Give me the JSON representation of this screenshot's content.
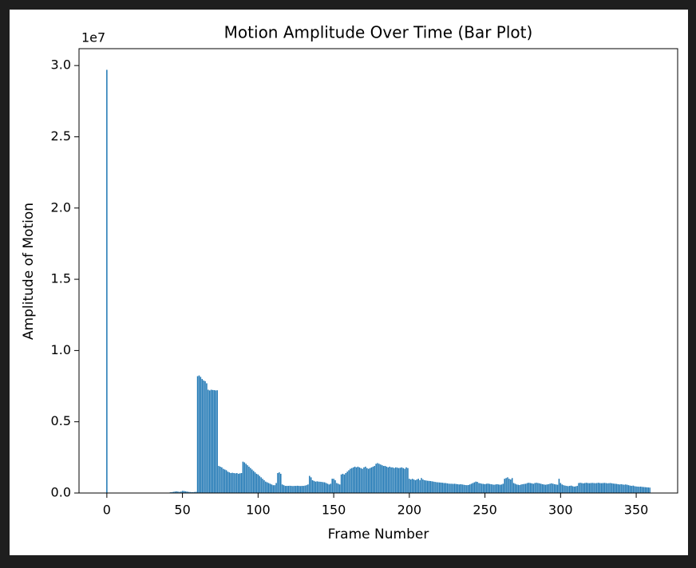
{
  "chart_data": {
    "type": "bar",
    "title": "Motion Amplitude Over Time (Bar Plot)",
    "x_label": "Frame Number",
    "y_label": "Amplitude of Motion",
    "y_offset_label": "1e7",
    "color": "#1f77b4",
    "xlim": [
      -18.4,
      377.4
    ],
    "ylim": [
      0,
      31185000
    ],
    "xticks": [
      0,
      50,
      100,
      150,
      200,
      250,
      300,
      350
    ],
    "yticks": [
      {
        "value": 0,
        "label": "0.0"
      },
      {
        "value": 5000000,
        "label": "0.5"
      },
      {
        "value": 10000000,
        "label": "1.0"
      },
      {
        "value": 15000000,
        "label": "1.5"
      },
      {
        "value": 20000000,
        "label": "2.0"
      },
      {
        "value": 25000000,
        "label": "2.5"
      },
      {
        "value": 30000000,
        "label": "3.0"
      }
    ],
    "x": [
      0,
      1,
      2,
      3,
      4,
      5,
      6,
      7,
      8,
      9,
      10,
      11,
      12,
      13,
      14,
      15,
      16,
      17,
      18,
      19,
      20,
      21,
      22,
      23,
      24,
      25,
      26,
      27,
      28,
      29,
      30,
      31,
      32,
      33,
      34,
      35,
      36,
      37,
      38,
      39,
      40,
      41,
      42,
      43,
      44,
      45,
      46,
      47,
      48,
      49,
      50,
      51,
      52,
      53,
      54,
      55,
      56,
      57,
      58,
      59,
      60,
      61,
      62,
      63,
      64,
      65,
      66,
      67,
      68,
      69,
      70,
      71,
      72,
      73,
      74,
      75,
      76,
      77,
      78,
      79,
      80,
      81,
      82,
      83,
      84,
      85,
      86,
      87,
      88,
      89,
      90,
      91,
      92,
      93,
      94,
      95,
      96,
      97,
      98,
      99,
      100,
      101,
      102,
      103,
      104,
      105,
      106,
      107,
      108,
      109,
      110,
      111,
      112,
      113,
      114,
      115,
      116,
      117,
      118,
      119,
      120,
      121,
      122,
      123,
      124,
      125,
      126,
      127,
      128,
      129,
      130,
      131,
      132,
      133,
      134,
      135,
      136,
      137,
      138,
      139,
      140,
      141,
      142,
      143,
      144,
      145,
      146,
      147,
      148,
      149,
      150,
      151,
      152,
      153,
      154,
      155,
      156,
      157,
      158,
      159,
      160,
      161,
      162,
      163,
      164,
      165,
      166,
      167,
      168,
      169,
      170,
      171,
      172,
      173,
      174,
      175,
      176,
      177,
      178,
      179,
      180,
      181,
      182,
      183,
      184,
      185,
      186,
      187,
      188,
      189,
      190,
      191,
      192,
      193,
      194,
      195,
      196,
      197,
      198,
      199,
      200,
      201,
      202,
      203,
      204,
      205,
      206,
      207,
      208,
      209,
      210,
      211,
      212,
      213,
      214,
      215,
      216,
      217,
      218,
      219,
      220,
      221,
      222,
      223,
      224,
      225,
      226,
      227,
      228,
      229,
      230,
      231,
      232,
      233,
      234,
      235,
      236,
      237,
      238,
      239,
      240,
      241,
      242,
      243,
      244,
      245,
      246,
      247,
      248,
      249,
      250,
      251,
      252,
      253,
      254,
      255,
      256,
      257,
      258,
      259,
      260,
      261,
      262,
      263,
      264,
      265,
      266,
      267,
      268,
      269,
      270,
      271,
      272,
      273,
      274,
      275,
      276,
      277,
      278,
      279,
      280,
      281,
      282,
      283,
      284,
      285,
      286,
      287,
      288,
      289,
      290,
      291,
      292,
      293,
      294,
      295,
      296,
      297,
      298,
      299,
      300,
      301,
      302,
      303,
      304,
      305,
      306,
      307,
      308,
      309,
      310,
      311,
      312,
      313,
      314,
      315,
      316,
      317,
      318,
      319,
      320,
      321,
      322,
      323,
      324,
      325,
      326,
      327,
      328,
      329,
      330,
      331,
      332,
      333,
      334,
      335,
      336,
      337,
      338,
      339,
      340,
      341,
      342,
      343,
      344,
      345,
      346,
      347,
      348,
      349,
      350,
      351,
      352,
      353,
      354,
      355,
      356,
      357,
      358,
      359
    ],
    "values": [
      29700000,
      0,
      0,
      0,
      0,
      0,
      0,
      0,
      0,
      0,
      0,
      0,
      0,
      0,
      0,
      0,
      0,
      0,
      0,
      0,
      0,
      0,
      0,
      0,
      0,
      0,
      0,
      0,
      0,
      0,
      0,
      0,
      0,
      0,
      0,
      0,
      0,
      0,
      0,
      0,
      0,
      0,
      50000,
      60000,
      80000,
      100000,
      120000,
      100000,
      80000,
      100000,
      150000,
      140000,
      120000,
      100000,
      80000,
      70000,
      60000,
      60000,
      70000,
      80000,
      8200000,
      8250000,
      8150000,
      8000000,
      7900000,
      7850000,
      7700000,
      7250000,
      7200000,
      7250000,
      7230000,
      7220000,
      7200000,
      7210000,
      1900000,
      1850000,
      1800000,
      1700000,
      1650000,
      1600000,
      1500000,
      1450000,
      1400000,
      1420000,
      1400000,
      1380000,
      1400000,
      1350000,
      1380000,
      1400000,
      2200000,
      2150000,
      2050000,
      1950000,
      1850000,
      1750000,
      1650000,
      1550000,
      1450000,
      1350000,
      1300000,
      1200000,
      1100000,
      1000000,
      900000,
      800000,
      750000,
      700000,
      650000,
      600000,
      550000,
      550000,
      700000,
      1400000,
      1450000,
      1350000,
      600000,
      550000,
      500000,
      500000,
      500000,
      510000,
      500000,
      490000,
      500000,
      500000,
      510000,
      500000,
      490000,
      500000,
      500000,
      520000,
      550000,
      600000,
      1200000,
      1100000,
      900000,
      850000,
      800000,
      820000,
      800000,
      790000,
      780000,
      760000,
      750000,
      700000,
      650000,
      600000,
      650000,
      1000000,
      1000000,
      900000,
      700000,
      650000,
      600000,
      1300000,
      1350000,
      1300000,
      1400000,
      1500000,
      1600000,
      1700000,
      1750000,
      1800000,
      1850000,
      1800000,
      1850000,
      1800000,
      1750000,
      1700000,
      1800000,
      1850000,
      1750000,
      1700000,
      1750000,
      1800000,
      1850000,
      1900000,
      2050000,
      2100000,
      2050000,
      2000000,
      1950000,
      1900000,
      1900000,
      1850000,
      1800000,
      1850000,
      1800000,
      1800000,
      1750000,
      1800000,
      1780000,
      1750000,
      1770000,
      1800000,
      1750000,
      1700000,
      1800000,
      1750000,
      1000000,
      950000,
      1000000,
      950000,
      900000,
      950000,
      1000000,
      900000,
      1050000,
      950000,
      900000,
      880000,
      860000,
      850000,
      840000,
      820000,
      800000,
      780000,
      760000,
      750000,
      740000,
      730000,
      720000,
      700000,
      700000,
      680000,
      660000,
      650000,
      650000,
      640000,
      650000,
      630000,
      620000,
      600000,
      620000,
      600000,
      580000,
      560000,
      550000,
      560000,
      600000,
      650000,
      700000,
      750000,
      800000,
      780000,
      700000,
      680000,
      650000,
      640000,
      620000,
      650000,
      660000,
      640000,
      620000,
      600000,
      580000,
      600000,
      620000,
      600000,
      580000,
      600000,
      650000,
      1000000,
      1050000,
      1100000,
      1000000,
      950000,
      1050000,
      700000,
      650000,
      600000,
      580000,
      560000,
      600000,
      620000,
      640000,
      650000,
      700000,
      720000,
      700000,
      680000,
      650000,
      700000,
      720000,
      700000,
      680000,
      650000,
      620000,
      600000,
      580000,
      600000,
      620000,
      650000,
      680000,
      650000,
      620000,
      600000,
      580000,
      1000000,
      700000,
      600000,
      550000,
      520000,
      500000,
      480000,
      500000,
      520000,
      480000,
      450000,
      470000,
      500000,
      700000,
      720000,
      700000,
      680000,
      700000,
      720000,
      700000,
      690000,
      700000,
      710000,
      700000,
      690000,
      700000,
      720000,
      700000,
      690000,
      700000,
      710000,
      700000,
      680000,
      690000,
      700000,
      680000,
      660000,
      650000,
      640000,
      620000,
      600000,
      620000,
      600000,
      580000,
      600000,
      580000,
      550000,
      520000,
      500000,
      520000,
      480000,
      460000,
      450000,
      440000,
      450000,
      430000,
      420000,
      410000,
      400000,
      390000,
      380000
    ]
  }
}
